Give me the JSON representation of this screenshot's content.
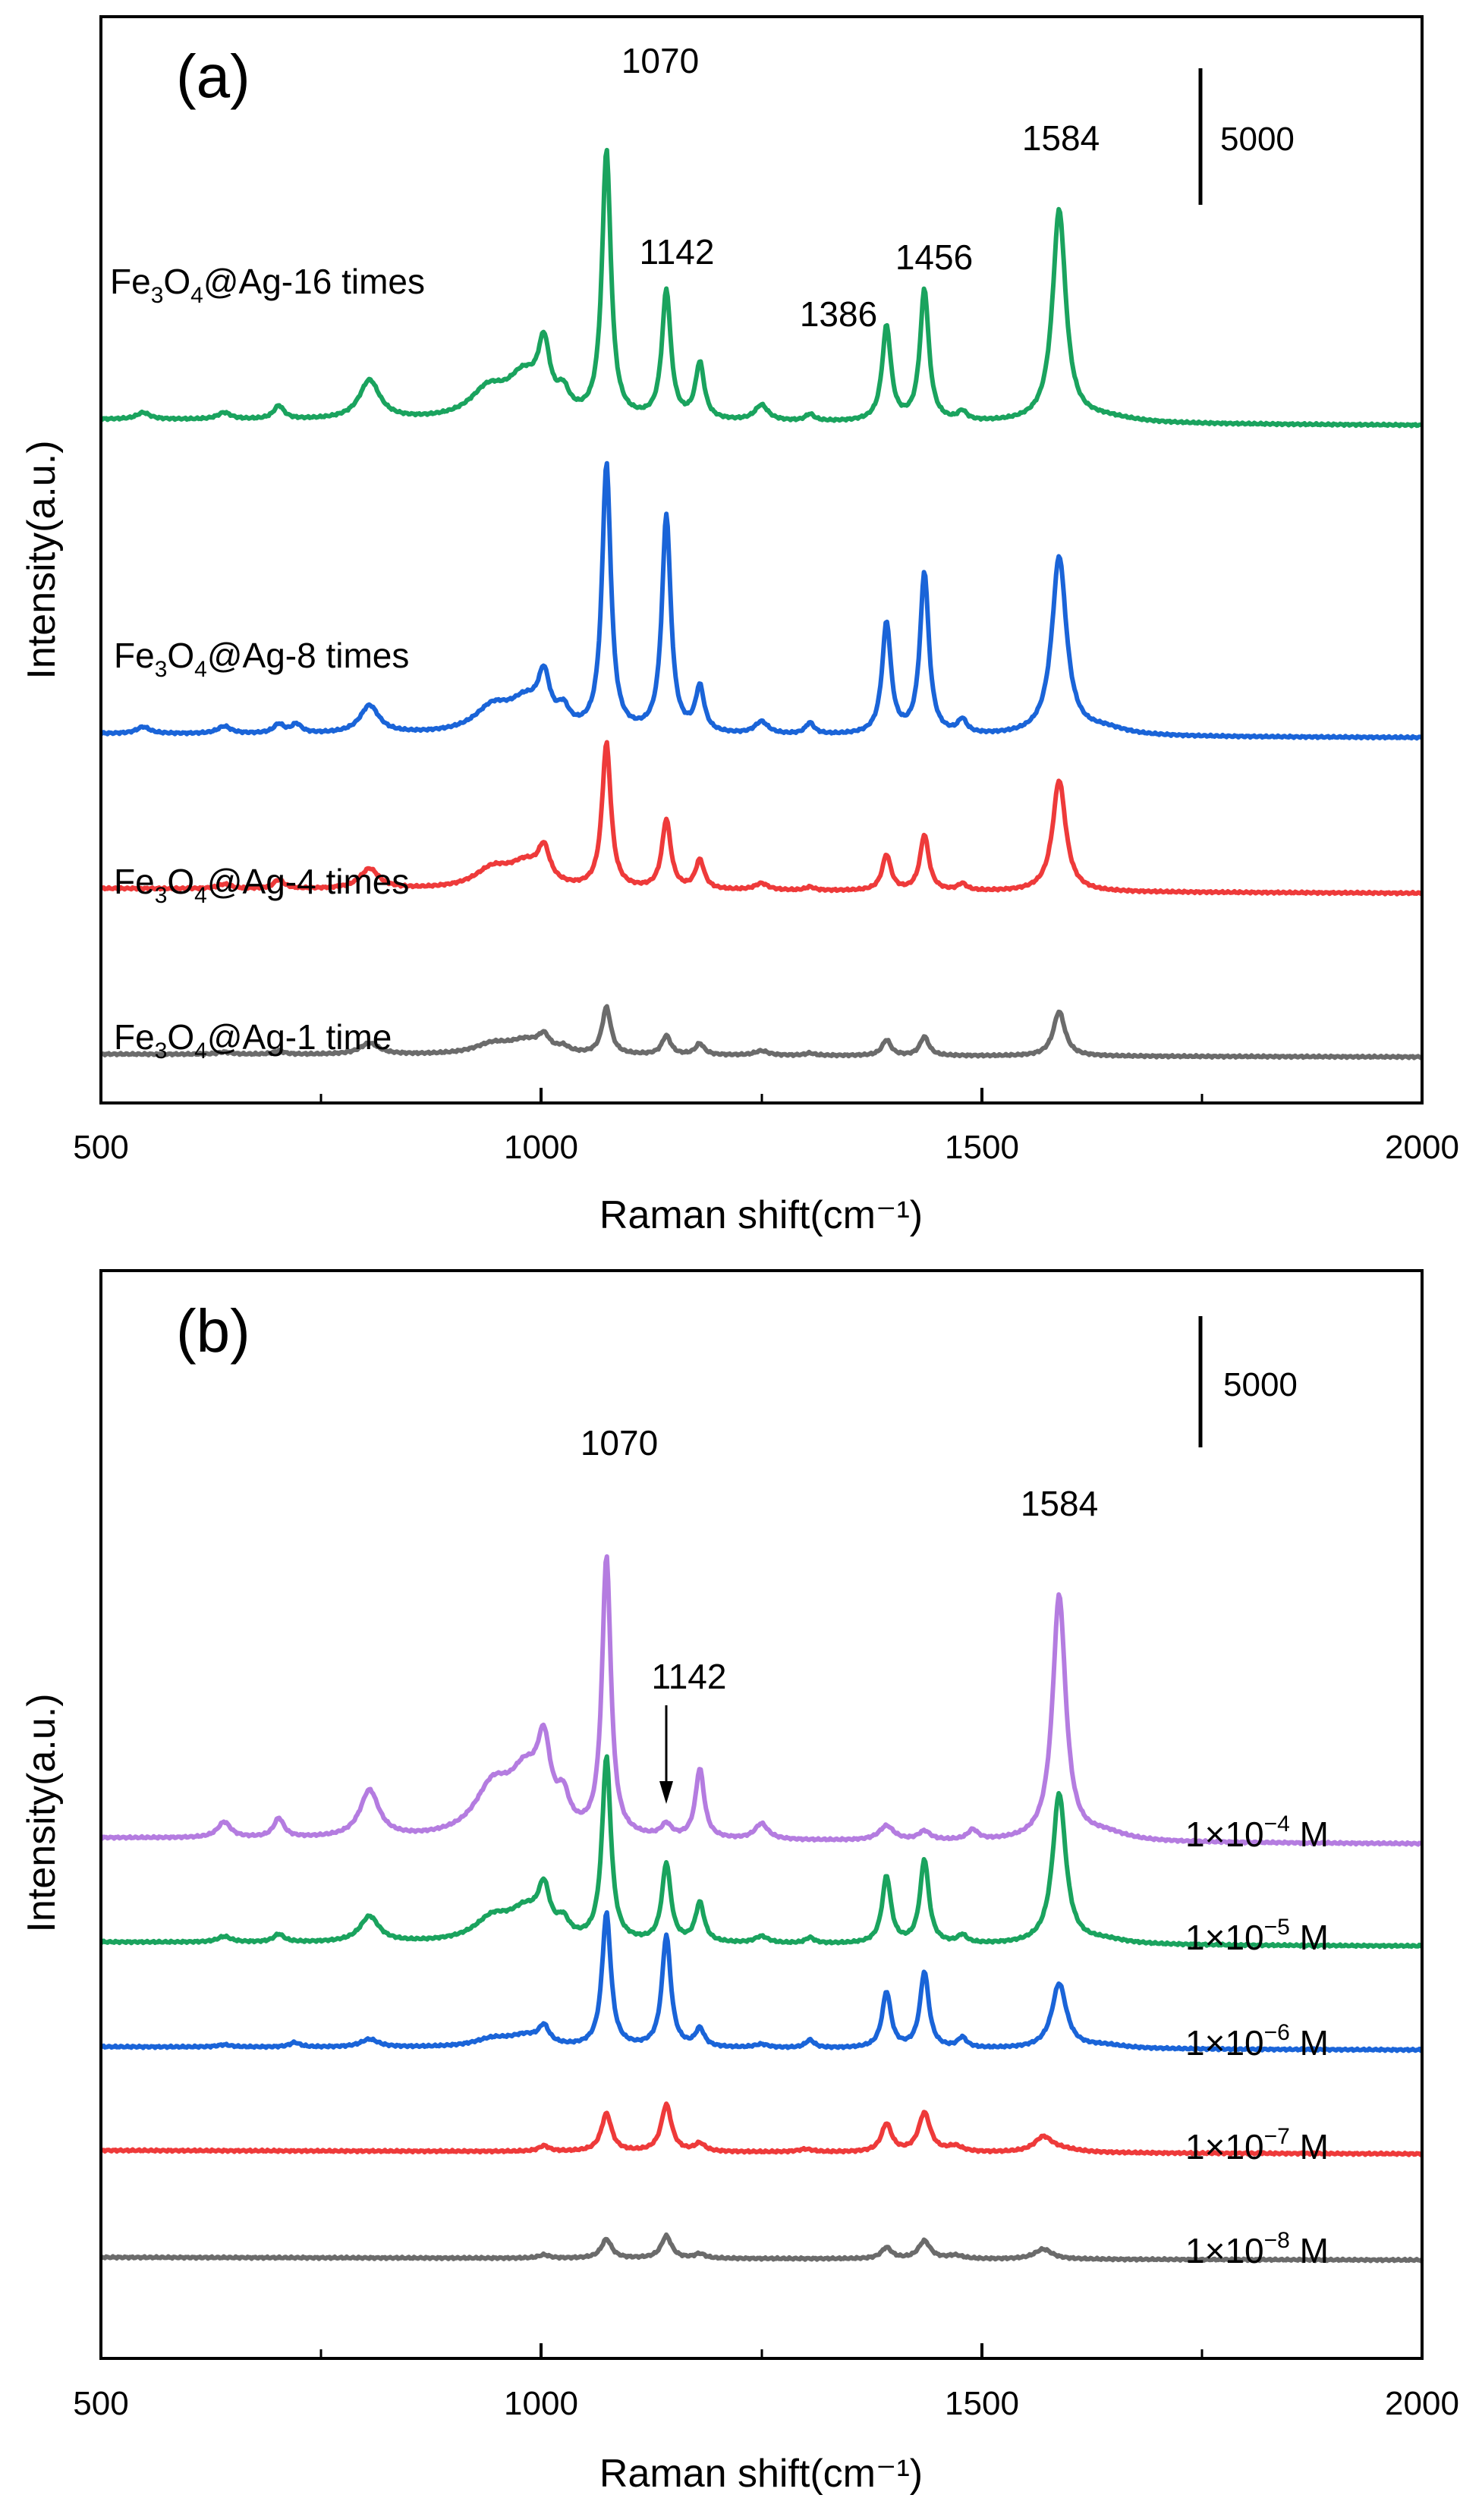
{
  "chart_data": [
    {
      "type": "line",
      "panel_label": "(a)",
      "xlabel": "Raman shift(cm⁻¹)",
      "ylabel": "Intensity(a.u.)",
      "xlim": [
        500,
        2000
      ],
      "x_ticks": [
        "500",
        "1000",
        "1500",
        "2000"
      ],
      "scale_bar": {
        "value": 5000,
        "label": "5000"
      },
      "peak_labels": [
        {
          "x": 1070,
          "text": "1070"
        },
        {
          "x": 1142,
          "text": "1142"
        },
        {
          "x": 1386,
          "text": "1386"
        },
        {
          "x": 1456,
          "text": "1456"
        },
        {
          "x": 1584,
          "text": "1584"
        }
      ],
      "series": [
        {
          "name": "Fe3O4@Ag-16 times",
          "label_main": "Fe",
          "label_sub1": "3",
          "label_mid": "O",
          "label_sub2": "4",
          "label_rest": "@Ag-16 times",
          "color": "#1aa35e",
          "baseline": 1500,
          "bumps": [
            [
              548,
              600,
              9
            ],
            [
              640,
              600,
              9
            ],
            [
              702,
              1200,
              7
            ],
            [
              805,
              3500,
              14
            ],
            [
              940,
              2500,
              25
            ],
            [
              980,
              3500,
              22
            ],
            [
              1003,
              5600,
              8
            ],
            [
              1025,
              1800,
              8
            ],
            [
              1074,
              24000,
              6
            ],
            [
              1142,
              11500,
              6
            ],
            [
              1180,
              5000,
              6
            ],
            [
              1250,
              1400,
              9
            ],
            [
              1305,
              600,
              6
            ],
            [
              1392,
              8500,
              6
            ],
            [
              1435,
              11800,
              6
            ],
            [
              1478,
              800,
              6
            ],
            [
              1588,
              19000,
              9
            ],
            [
              1640,
              500,
              40
            ]
          ]
        },
        {
          "name": "Fe3O4@Ag-8 times",
          "label_main": "Fe",
          "label_sub1": "3",
          "label_mid": "O",
          "label_sub2": "4",
          "label_rest": "@Ag-8 times",
          "color": "#1a64d8",
          "baseline": 1000,
          "bumps": [
            [
              548,
              600,
              9
            ],
            [
              640,
              650,
              9
            ],
            [
              702,
              800,
              7
            ],
            [
              722,
              800,
              7
            ],
            [
              805,
              2500,
              13
            ],
            [
              945,
              2200,
              25
            ],
            [
              982,
              2500,
              22
            ],
            [
              1003,
              4200,
              8
            ],
            [
              1025,
              1600,
              8
            ],
            [
              1074,
              24000,
              6
            ],
            [
              1142,
              19500,
              6
            ],
            [
              1180,
              4000,
              6
            ],
            [
              1250,
              1100,
              9
            ],
            [
              1305,
              1000,
              6
            ],
            [
              1392,
              10000,
              6
            ],
            [
              1435,
              14500,
              6
            ],
            [
              1478,
              1200,
              6
            ],
            [
              1588,
              16000,
              10
            ],
            [
              1640,
              600,
              30
            ]
          ]
        },
        {
          "name": "Fe3O4@Ag-4 times",
          "label_main": "Fe",
          "label_sub1": "3",
          "label_mid": "O",
          "label_sub2": "4",
          "label_rest": "@Ag-4 times",
          "color": "#ee3a3a",
          "baseline": 1200,
          "bumps": [
            [
              640,
              400,
              9
            ],
            [
              702,
              800,
              7
            ],
            [
              805,
              1800,
              13
            ],
            [
              945,
              1700,
              25
            ],
            [
              982,
              2000,
              22
            ],
            [
              1003,
              2900,
              8
            ],
            [
              1074,
              13000,
              6
            ],
            [
              1142,
              6200,
              6
            ],
            [
              1180,
              2600,
              6
            ],
            [
              1250,
              600,
              9
            ],
            [
              1305,
              300,
              6
            ],
            [
              1392,
              3200,
              6
            ],
            [
              1435,
              5000,
              6
            ],
            [
              1478,
              600,
              6
            ],
            [
              1588,
              10000,
              9
            ]
          ]
        },
        {
          "name": "Fe3O4@Ag-1 time",
          "label_main": "Fe",
          "label_sub1": "3",
          "label_mid": "O",
          "label_sub2": "4",
          "label_rest": "@Ag-1 time",
          "color": "#6b6b6b",
          "baseline": 700,
          "bumps": [
            [
              640,
              200,
              9
            ],
            [
              702,
              300,
              7
            ],
            [
              805,
              1000,
              13
            ],
            [
              945,
              900,
              25
            ],
            [
              982,
              1100,
              22
            ],
            [
              1003,
              1300,
              8
            ],
            [
              1025,
              500,
              8
            ],
            [
              1074,
              4200,
              6
            ],
            [
              1142,
              1700,
              6
            ],
            [
              1180,
              1000,
              6
            ],
            [
              1250,
              400,
              9
            ],
            [
              1305,
              200,
              6
            ],
            [
              1392,
              1400,
              6
            ],
            [
              1435,
              1700,
              6
            ],
            [
              1588,
              4000,
              8
            ]
          ]
        }
      ]
    },
    {
      "type": "line",
      "panel_label": "(b)",
      "xlabel": "Raman shift(cm⁻¹)",
      "ylabel": "Intensity(a.u.)",
      "xlim": [
        500,
        2000
      ],
      "x_ticks": [
        "500",
        "1000",
        "1500",
        "2000"
      ],
      "scale_bar": {
        "value": 5000,
        "label": "5000"
      },
      "peak_labels": [
        {
          "x": 1070,
          "text": "1070"
        },
        {
          "x": 1142,
          "text": "1142",
          "arrow": true
        },
        {
          "x": 1584,
          "text": "1584"
        }
      ],
      "series": [
        {
          "name": "1×10⁻⁴ M",
          "label_pre": "1×10",
          "label_exp": "−4",
          "label_post": " M",
          "color": "#b47ce0",
          "baseline": 1500,
          "bumps": [
            [
              640,
              1400,
              9
            ],
            [
              702,
              1700,
              7
            ],
            [
              805,
              4200,
              13
            ],
            [
              945,
              4200,
              25
            ],
            [
              982,
              5000,
              22
            ],
            [
              1003,
              6500,
              9
            ],
            [
              1025,
              2600,
              8
            ],
            [
              1074,
              25000,
              6
            ],
            [
              1142,
              1100,
              7
            ],
            [
              1180,
              6200,
              6
            ],
            [
              1250,
              1400,
              9
            ],
            [
              1392,
              1300,
              10
            ],
            [
              1435,
              800,
              8
            ],
            [
              1490,
              900,
              7
            ],
            [
              1588,
              22000,
              9
            ],
            [
              1640,
              700,
              30
            ]
          ]
        },
        {
          "name": "1×10⁻⁵ M",
          "label_pre": "1×10",
          "label_exp": "−5",
          "label_post": " M",
          "color": "#1aa35e",
          "baseline": 1000,
          "bumps": [
            [
              640,
              500,
              9
            ],
            [
              702,
              700,
              7
            ],
            [
              805,
              2300,
              13
            ],
            [
              945,
              2000,
              25
            ],
            [
              982,
              2500,
              22
            ],
            [
              1003,
              3900,
              8
            ],
            [
              1025,
              1400,
              8
            ],
            [
              1074,
              16500,
              6
            ],
            [
              1142,
              7000,
              6
            ],
            [
              1180,
              3500,
              6
            ],
            [
              1250,
              600,
              9
            ],
            [
              1305,
              500,
              6
            ],
            [
              1392,
              6000,
              6
            ],
            [
              1435,
              7500,
              6
            ],
            [
              1478,
              700,
              6
            ],
            [
              1588,
              13500,
              9
            ],
            [
              1640,
              400,
              30
            ]
          ]
        },
        {
          "name": "1×10⁻⁶ M",
          "label_pre": "1×10",
          "label_exp": "−6",
          "label_post": " M",
          "color": "#1a64d8",
          "baseline": 800,
          "bumps": [
            [
              640,
              200,
              9
            ],
            [
              720,
              400,
              7
            ],
            [
              805,
              700,
              12
            ],
            [
              945,
              700,
              25
            ],
            [
              982,
              900,
              22
            ],
            [
              1003,
              1500,
              7
            ],
            [
              1074,
              12000,
              6
            ],
            [
              1142,
              10000,
              6
            ],
            [
              1180,
              1600,
              6
            ],
            [
              1250,
              300,
              9
            ],
            [
              1305,
              700,
              6
            ],
            [
              1392,
              5000,
              6
            ],
            [
              1435,
              6800,
              6
            ],
            [
              1478,
              900,
              6
            ],
            [
              1588,
              5800,
              10
            ],
            [
              1640,
              300,
              30
            ]
          ]
        },
        {
          "name": "1×10⁻⁷ M",
          "label_pre": "1×10",
          "label_exp": "−7",
          "label_post": " M",
          "color": "#ee3a3a",
          "baseline": 900,
          "bumps": [
            [
              1003,
              500,
              7
            ],
            [
              1074,
              3400,
              7
            ],
            [
              1142,
              4200,
              7
            ],
            [
              1180,
              700,
              7
            ],
            [
              1300,
              250,
              10
            ],
            [
              1392,
              2500,
              7
            ],
            [
              1435,
              3500,
              8
            ],
            [
              1470,
              500,
              10
            ],
            [
              1570,
              1300,
              12
            ],
            [
              1590,
              300,
              25
            ]
          ]
        },
        {
          "name": "1×10⁻⁸ M",
          "label_pre": "1×10",
          "label_exp": "−8",
          "label_post": " M",
          "color": "#6b6b6b",
          "baseline": 700,
          "bumps": [
            [
              1003,
              300,
              7
            ],
            [
              1074,
              1700,
              7
            ],
            [
              1142,
              2000,
              7
            ],
            [
              1180,
              400,
              7
            ],
            [
              1392,
              1000,
              7
            ],
            [
              1435,
              1600,
              8
            ],
            [
              1470,
              300,
              10
            ],
            [
              1570,
              900,
              12
            ]
          ]
        }
      ]
    }
  ]
}
